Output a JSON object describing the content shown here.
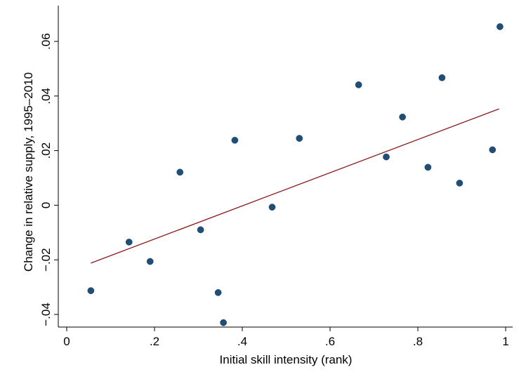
{
  "chart_data": {
    "type": "scatter",
    "title": "",
    "xlabel": "Initial skill intensity (rank)",
    "ylabel": "Change in relative supply, 1995–2010",
    "xlim": [
      0,
      1
    ],
    "ylim": [
      -0.045,
      0.068
    ],
    "x_ticks": [
      0,
      0.2,
      0.4,
      0.6,
      0.8,
      1
    ],
    "x_tick_labels": [
      "0",
      ".2",
      ".4",
      ".6",
      ".8",
      "1"
    ],
    "y_ticks": [
      -0.04,
      -0.02,
      0,
      0.02,
      0.04,
      0.06
    ],
    "y_tick_labels": [
      "-.04",
      "-.02",
      "0",
      ".02",
      ".04",
      ".06"
    ],
    "grid": false,
    "legend": "none",
    "colors": {
      "points": "#1f4e79",
      "fit_line": "#8b1a1a"
    },
    "points": [
      {
        "x": 0.055,
        "y": -0.0313
      },
      {
        "x": 0.142,
        "y": -0.0135
      },
      {
        "x": 0.19,
        "y": -0.0206
      },
      {
        "x": 0.258,
        "y": 0.0121
      },
      {
        "x": 0.305,
        "y": -0.009
      },
      {
        "x": 0.345,
        "y": -0.032
      },
      {
        "x": 0.357,
        "y": -0.043
      },
      {
        "x": 0.383,
        "y": 0.0238
      },
      {
        "x": 0.468,
        "y": -0.0007
      },
      {
        "x": 0.53,
        "y": 0.0245
      },
      {
        "x": 0.665,
        "y": 0.0441
      },
      {
        "x": 0.728,
        "y": 0.0177
      },
      {
        "x": 0.765,
        "y": 0.0323
      },
      {
        "x": 0.823,
        "y": 0.0139
      },
      {
        "x": 0.855,
        "y": 0.0467
      },
      {
        "x": 0.895,
        "y": 0.0081
      },
      {
        "x": 0.97,
        "y": 0.0203
      },
      {
        "x": 0.987,
        "y": 0.0654
      }
    ],
    "fit_line": {
      "x": [
        0.055,
        0.985
      ],
      "y": [
        -0.0212,
        0.0353
      ]
    }
  }
}
